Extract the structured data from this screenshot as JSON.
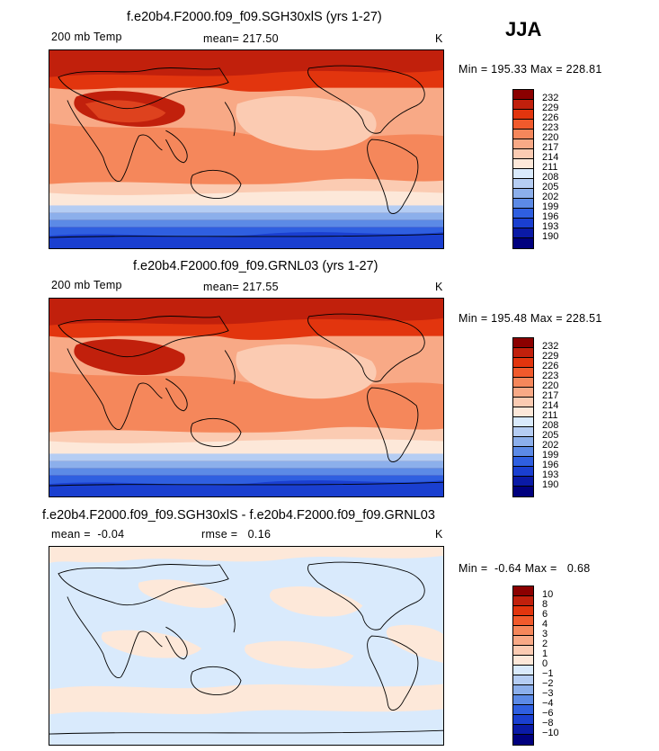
{
  "season": "JJA",
  "panels": [
    {
      "title": "f.e20b4.F2000.f09_f09.SGH30xlS (yrs 1-27)",
      "left_label": "200 mb Temp",
      "center_label": "mean= 217.50",
      "units": "K",
      "minmax": "Min = 195.33 Max = 228.81"
    },
    {
      "title": "f.e20b4.F2000.f09_f09.GRNL03 (yrs 1-27)",
      "left_label": "200 mb Temp",
      "center_label": "mean= 217.55",
      "units": "K",
      "minmax": "Min = 195.48 Max = 228.51"
    },
    {
      "title": "f.e20b4.F2000.f09_f09.SGH30xlS - f.e20b4.F2000.f09_f09.GRNL03",
      "left_label": "mean =  -0.04",
      "center_label": "rmse =   0.16",
      "units": "K",
      "minmax": "Min =  -0.64 Max =   0.68"
    }
  ],
  "colorbar_abs": {
    "labels": [
      "232",
      "229",
      "226",
      "223",
      "220",
      "217",
      "214",
      "211",
      "208",
      "205",
      "202",
      "199",
      "196",
      "193",
      "190"
    ],
    "colors": [
      "#8b0000",
      "#c1200c",
      "#e2350e",
      "#f15a2c",
      "#f5875b",
      "#f8a986",
      "#fbcbb2",
      "#fde8d9",
      "#d9eafc",
      "#b5cdf3",
      "#8cafeb",
      "#5c8ae6",
      "#2f5fe0",
      "#1a3fd0",
      "#0a1aa6",
      "#00007e"
    ]
  },
  "colorbar_diff": {
    "labels": [
      "10",
      "8",
      "6",
      "4",
      "3",
      "2",
      "1",
      "0",
      "−1",
      "−2",
      "−3",
      "−4",
      "−6",
      "−8",
      "−10"
    ],
    "colors": [
      "#8b0000",
      "#c1200c",
      "#e2350e",
      "#f15a2c",
      "#f5875b",
      "#f8a986",
      "#fbcbb2",
      "#fde8d9",
      "#d9eafc",
      "#b5cdf3",
      "#8cafeb",
      "#5c8ae6",
      "#2f5fe0",
      "#1a3fd0",
      "#0a1aa6",
      "#00007e"
    ]
  }
}
